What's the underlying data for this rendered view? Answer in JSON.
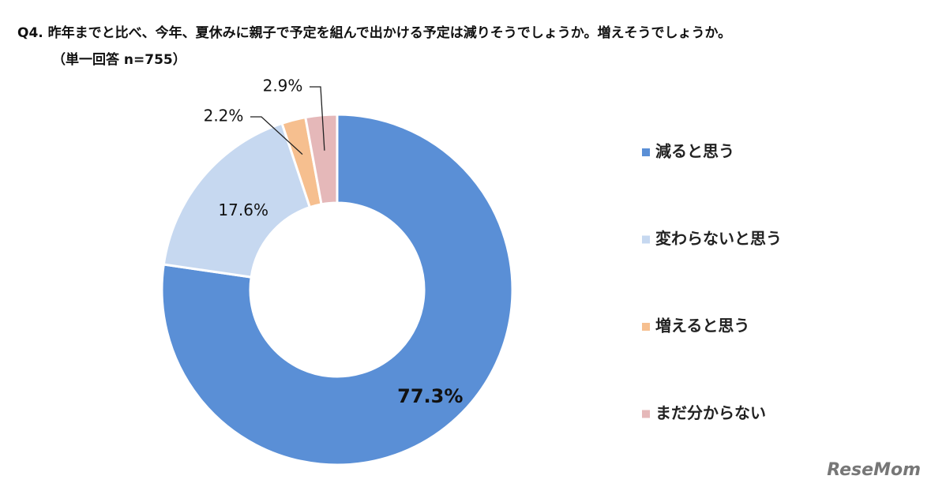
{
  "chart_data": {
    "type": "donut",
    "title": "Q4.  昨年までと比べ、今年、夏休みに親子で予定を組んで出かける予定は減りそうでしょうか。増えそうでしょうか。",
    "subtitle": "（単一回答  n=755）",
    "categories": [
      "減ると思う",
      "変わらないと思う",
      "増えると思う",
      "まだ分からない"
    ],
    "values": [
      77.3,
      17.6,
      2.2,
      2.9
    ],
    "value_labels": [
      "77.3%",
      "17.6%",
      "2.2%",
      "2.9%"
    ],
    "colors": [
      "#5a8fd6",
      "#c6d8f0",
      "#f6bf8f",
      "#e5b8b9"
    ],
    "legend": "right",
    "watermark": "ReseMom"
  }
}
